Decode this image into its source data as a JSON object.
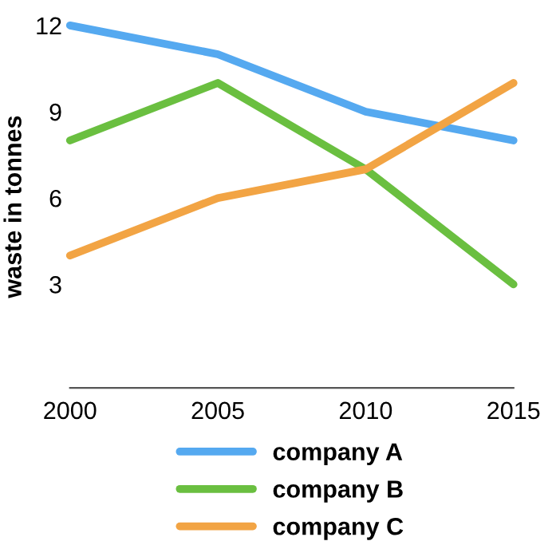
{
  "chart_data": {
    "type": "line",
    "ylabel": "waste in tonnes",
    "x": [
      2000,
      2005,
      2010,
      2015
    ],
    "series": [
      {
        "name": "company A",
        "color": "#55a9f0",
        "values": [
          12,
          11,
          9,
          8
        ]
      },
      {
        "name": "company B",
        "color": "#6abf40",
        "values": [
          8,
          10,
          7,
          3
        ]
      },
      {
        "name": "company C",
        "color": "#f2a444",
        "values": [
          4,
          6,
          7,
          10
        ]
      }
    ],
    "xlim": [
      2000,
      2015
    ],
    "xticks": [
      2000,
      2005,
      2010,
      2015
    ],
    "ylim": [
      -0.6,
      12
    ],
    "yticks": [
      3,
      6,
      9,
      12
    ],
    "grid": false,
    "legend": "bottom",
    "marker": "none",
    "line_style": "solid"
  }
}
